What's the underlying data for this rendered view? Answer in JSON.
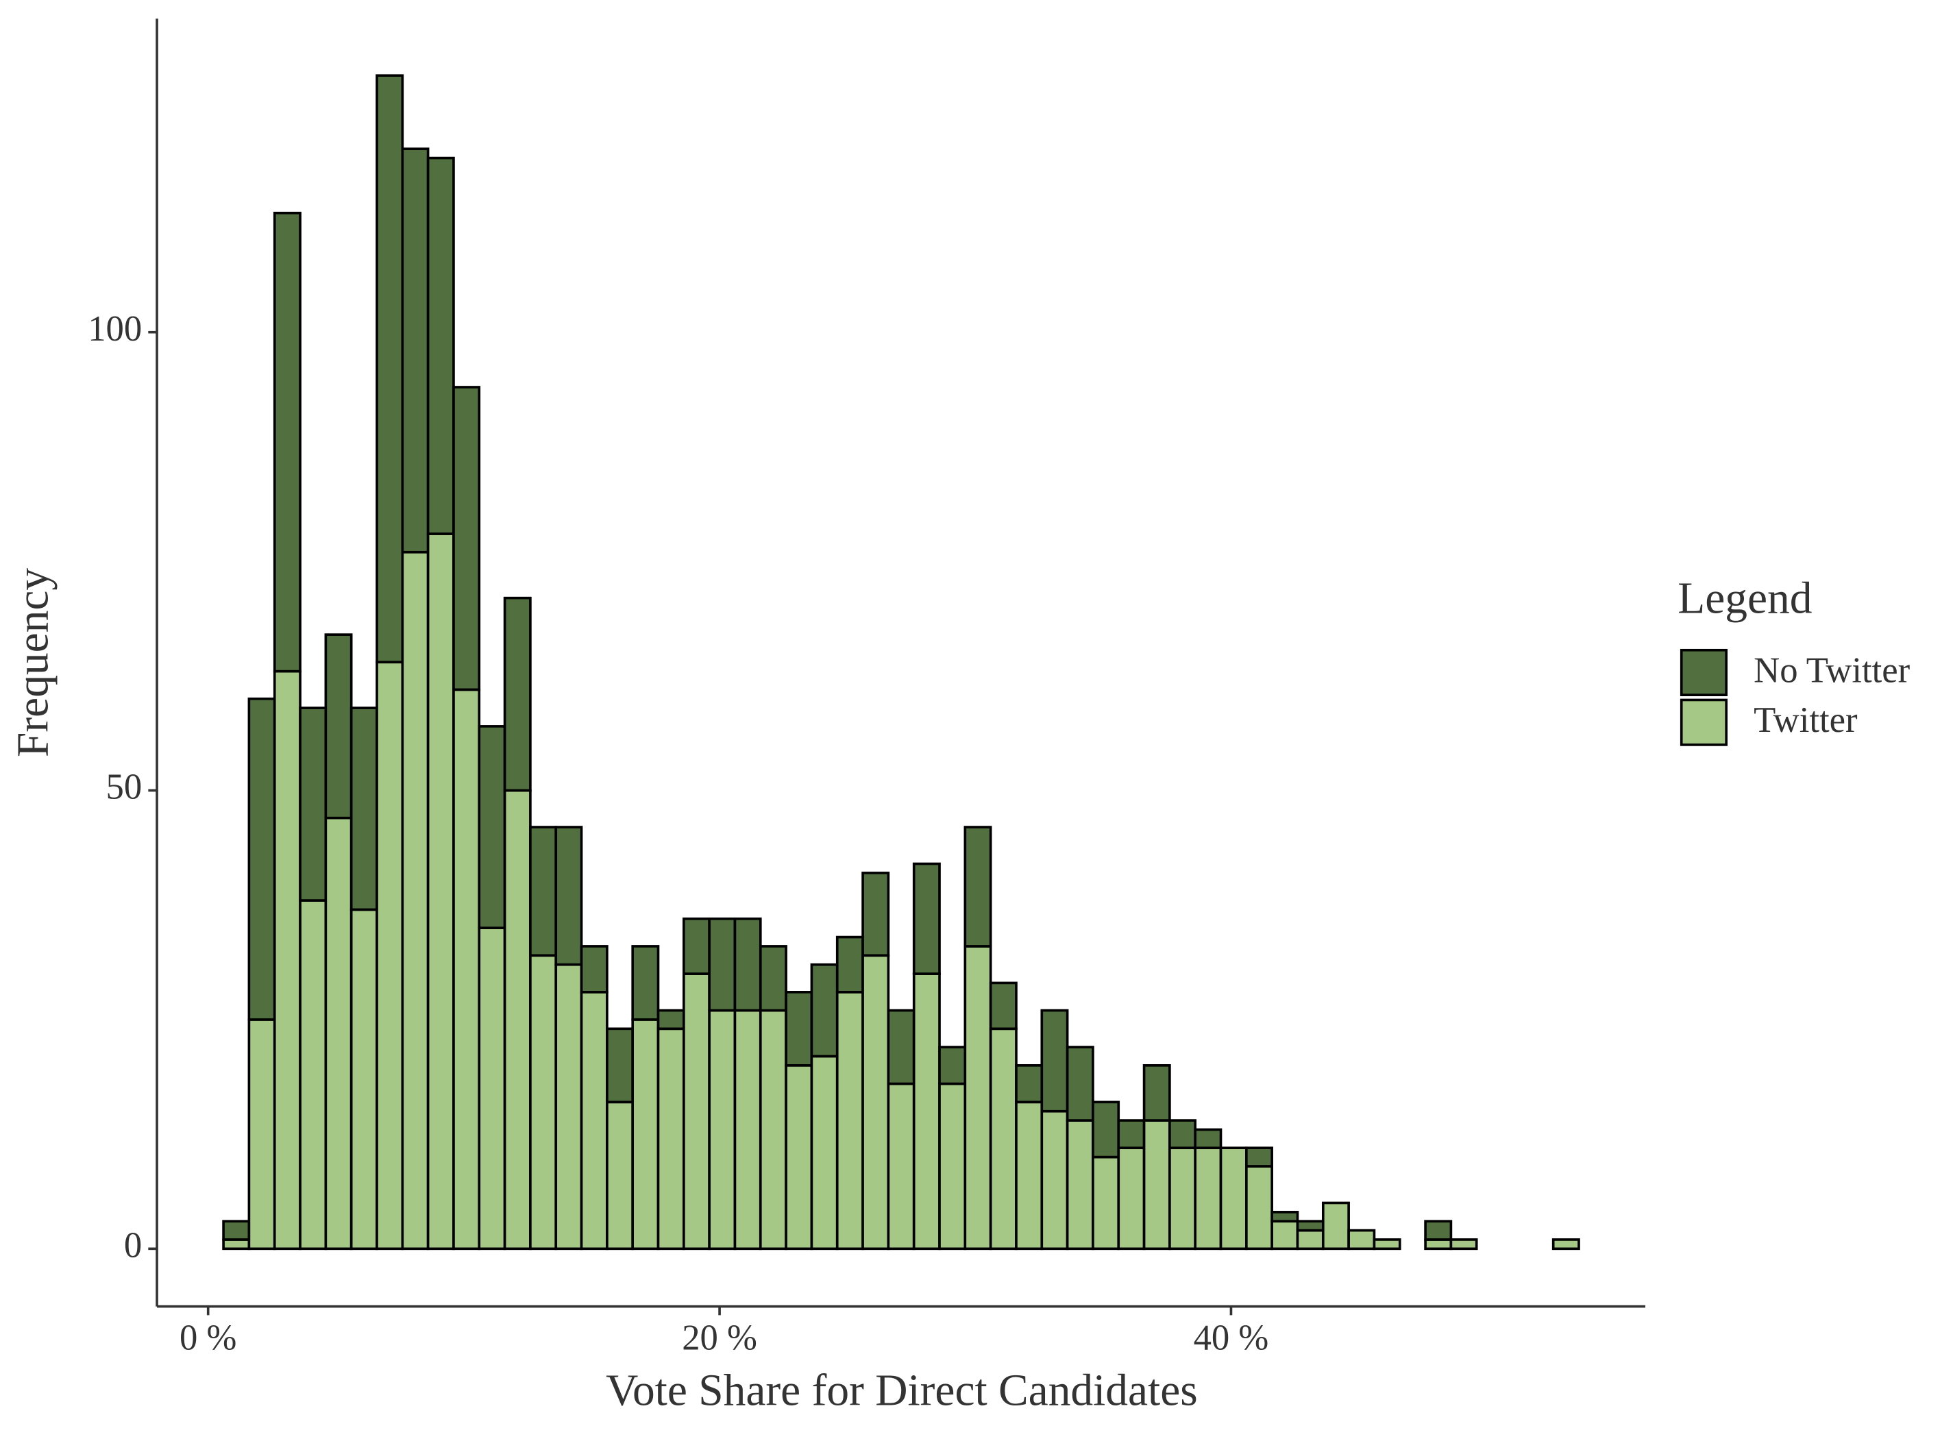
{
  "chart_data": {
    "type": "stacked_histogram",
    "x_label": "Vote Share for Direct Candidates",
    "y_label": "Frequency",
    "legend_title": "Legend",
    "legend_position": "right",
    "bins": [
      0.6,
      1.6,
      2.6,
      3.6,
      4.6,
      5.6,
      6.6,
      7.6,
      8.6,
      9.6,
      10.6,
      11.6,
      12.6,
      13.6,
      14.6,
      15.6,
      16.6,
      17.6,
      18.6,
      19.6,
      20.6,
      21.6,
      22.6,
      23.6,
      24.6,
      25.6,
      26.6,
      27.6,
      28.6,
      29.6,
      30.6,
      31.6,
      32.6,
      33.6,
      34.6,
      35.6,
      36.6,
      37.6,
      38.6,
      39.6,
      40.6,
      41.6,
      42.6,
      43.6,
      44.6,
      45.6,
      46.6,
      47.6,
      48.6,
      49.6,
      50.6,
      51.6,
      52.6,
      53.6
    ],
    "series": [
      {
        "name": "No Twitter",
        "color": "#52703f",
        "values": [
          2,
          35,
          50,
          21,
          20,
          22,
          64,
          44,
          41,
          33,
          22,
          21,
          14,
          15,
          5,
          8,
          8,
          2,
          6,
          10,
          10,
          7,
          8,
          10,
          6,
          9,
          8,
          12,
          4,
          13,
          5,
          4,
          11,
          8,
          6,
          3,
          6,
          3,
          2,
          0,
          2,
          1,
          1,
          0,
          0,
          0,
          0,
          2,
          0,
          0,
          0,
          0,
          0
        ]
      },
      {
        "name": "Twitter",
        "color": "#a6c886",
        "values": [
          1,
          25,
          63,
          38,
          47,
          37,
          64,
          76,
          78,
          61,
          35,
          50,
          32,
          31,
          28,
          16,
          25,
          24,
          30,
          26,
          26,
          26,
          20,
          21,
          28,
          32,
          18,
          30,
          18,
          33,
          24,
          16,
          15,
          14,
          10,
          11,
          14,
          11,
          11,
          11,
          9,
          3,
          2,
          5,
          2,
          1,
          0,
          1,
          1,
          0,
          0,
          0,
          1
        ]
      }
    ],
    "xlim": [
      -2,
      56.2
    ],
    "ylim": [
      -6.3,
      134.2
    ],
    "xticks": [
      {
        "value": 0,
        "label": "0 %"
      },
      {
        "value": 20,
        "label": "20 %"
      },
      {
        "value": 40,
        "label": "40 %"
      }
    ],
    "yticks": [
      0,
      50,
      100
    ],
    "grid": false
  }
}
